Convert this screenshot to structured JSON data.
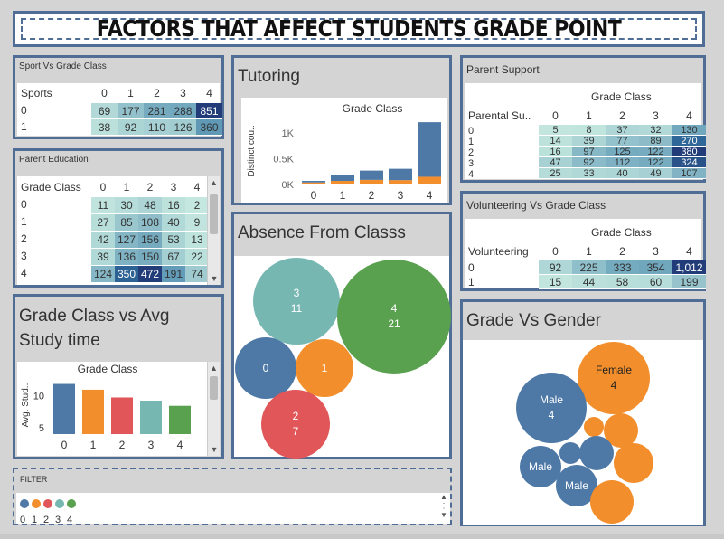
{
  "header": {
    "title": "FACTORS THAT AFFECT STUDENTS GRADE POINT"
  },
  "colors": {
    "c0": "#4e79a7",
    "c1": "#f28e2b",
    "c2": "#e15759",
    "c3": "#76b7b2",
    "c4": "#59a14f",
    "border": "#4f6d95"
  },
  "sport": {
    "title": "Sport Vs Grade Class",
    "row_header": "Sports",
    "cols": [
      "0",
      "1",
      "2",
      "3",
      "4"
    ],
    "rows": [
      {
        "label": "0",
        "values": [
          "69",
          "177",
          "281",
          "288",
          "851"
        ]
      },
      {
        "label": "1",
        "values": [
          "38",
          "92",
          "110",
          "126",
          "360"
        ]
      }
    ]
  },
  "parent_edu": {
    "title": "Parent Education",
    "row_header": "Grade Class",
    "cols": [
      "0",
      "1",
      "2",
      "3",
      "4"
    ],
    "rows": [
      {
        "label": "0",
        "values": [
          "11",
          "30",
          "48",
          "16",
          "2"
        ]
      },
      {
        "label": "1",
        "values": [
          "27",
          "85",
          "108",
          "40",
          "9"
        ]
      },
      {
        "label": "2",
        "values": [
          "42",
          "127",
          "156",
          "53",
          "13"
        ]
      },
      {
        "label": "3",
        "values": [
          "39",
          "136",
          "150",
          "67",
          "22"
        ]
      },
      {
        "label": "4",
        "values": [
          "124",
          "350",
          "472",
          "191",
          "74"
        ]
      }
    ]
  },
  "study": {
    "title_line1": "Grade Class vs Avg",
    "title_line2": "Study time",
    "col_header": "Grade Class",
    "ylabel": "Avg. Stud..",
    "ticks": [
      "10",
      "5"
    ]
  },
  "study_chart": {
    "type": "bar",
    "categories": [
      "0",
      "1",
      "2",
      "3",
      "4"
    ],
    "values": [
      11.8,
      10.9,
      9.7,
      9.2,
      8.4
    ],
    "ylim": [
      4,
      13
    ]
  },
  "tutoring": {
    "title": "Tutoring",
    "col_header": "Grade Class",
    "ylabel": "Distinct cou..",
    "ticks": [
      "1K",
      "0.5K",
      "0K"
    ]
  },
  "tutoring_chart": {
    "type": "bar",
    "categories": [
      "0",
      "1",
      "2",
      "3",
      "4"
    ],
    "series": [
      {
        "values": [
          40,
          70,
          90,
          85,
          150
        ]
      },
      {
        "values": [
          30,
          110,
          180,
          220,
          1060
        ]
      }
    ],
    "ylim": [
      0,
      1300
    ]
  },
  "absence": {
    "title": "Absence From Classs",
    "bubbles": [
      {
        "line1": "3",
        "line2": "11"
      },
      {
        "line1": "4",
        "line2": "21"
      },
      {
        "line1": "0",
        "line2": ""
      },
      {
        "line1": "1",
        "line2": ""
      },
      {
        "line1": "2",
        "line2": "7"
      }
    ]
  },
  "parent_support": {
    "title": "Parent Support",
    "col_header": "Grade Class",
    "row_header": "Parental Su..",
    "cols": [
      "0",
      "1",
      "2",
      "3",
      "4"
    ],
    "rows": [
      {
        "label": "0",
        "values": [
          "5",
          "8",
          "37",
          "32",
          "130"
        ]
      },
      {
        "label": "1",
        "values": [
          "14",
          "39",
          "77",
          "89",
          "270"
        ]
      },
      {
        "label": "2",
        "values": [
          "16",
          "97",
          "125",
          "122",
          "380"
        ]
      },
      {
        "label": "3",
        "values": [
          "47",
          "92",
          "112",
          "122",
          "324"
        ]
      },
      {
        "label": "4",
        "values": [
          "25",
          "33",
          "40",
          "49",
          "107"
        ]
      }
    ]
  },
  "volunteering": {
    "title": "Volunteering Vs Grade Class",
    "col_header": "Grade Class",
    "row_header": "Volunteering",
    "cols": [
      "0",
      "1",
      "2",
      "3",
      "4"
    ],
    "rows": [
      {
        "label": "0",
        "values": [
          "92",
          "225",
          "333",
          "354",
          "1,012"
        ]
      },
      {
        "label": "1",
        "values": [
          "15",
          "44",
          "58",
          "60",
          "199"
        ]
      }
    ]
  },
  "gender": {
    "title": "Grade Vs Gender",
    "labels": {
      "female": "Female",
      "female_val": "4",
      "male": "Male",
      "male_val": "4",
      "male2": "Male",
      "male3": "Male"
    }
  },
  "filter": {
    "title": "FILTER",
    "items": [
      "0",
      "1",
      "2",
      "3",
      "4"
    ]
  }
}
